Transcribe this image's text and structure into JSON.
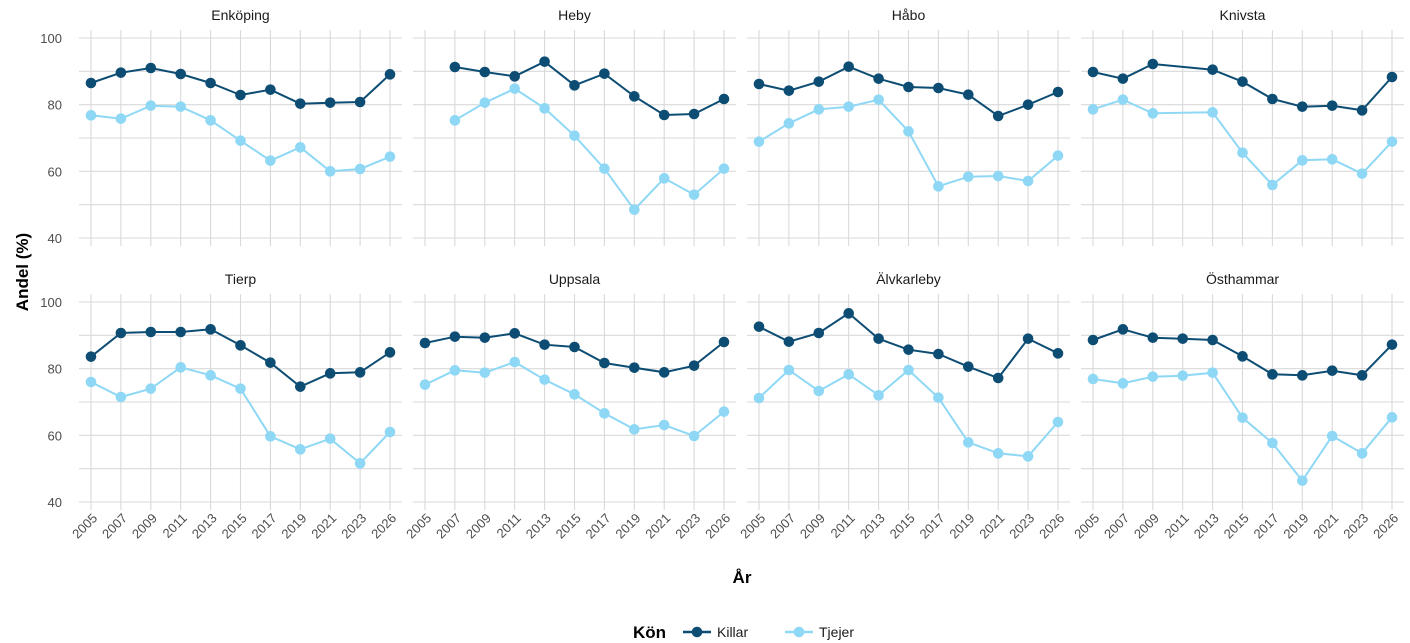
{
  "chart_data": {
    "type": "line",
    "facet_layout": "4 columns x 2 rows",
    "xlabel": "År",
    "ylabel": "Andel (%)",
    "ylim": [
      40,
      100
    ],
    "yticks": [
      40,
      60,
      80,
      100
    ],
    "x": [
      "2005",
      "2007",
      "2009",
      "2011",
      "2013",
      "2015",
      "2017",
      "2019",
      "2021",
      "2023",
      "2026"
    ],
    "grid": true,
    "legend": {
      "title": "Kön",
      "position": "bottom",
      "entries": [
        "Killar",
        "Tjejer"
      ]
    },
    "series_colors": {
      "Killar": "#0d4d73",
      "Tjejer": "#8fd8f5"
    },
    "panels": [
      {
        "title": "Enköping",
        "series": [
          {
            "name": "Killar",
            "values": [
              86.5,
              89.6,
              91,
              89.2,
              86.5,
              82.9,
              84.5,
              80.3,
              80.6,
              80.8,
              89.1
            ]
          },
          {
            "name": "Tjejer",
            "values": [
              76.8,
              75.8,
              79.7,
              79.4,
              75.3,
              69.2,
              63.2,
              67.2,
              60.0,
              60.7,
              64.4
            ]
          }
        ]
      },
      {
        "title": "Heby",
        "series": [
          {
            "name": "Killar",
            "values": [
              null,
              91.3,
              89.8,
              88.5,
              92.9,
              85.8,
              89.3,
              82.5,
              76.9,
              77.2,
              81.7
            ]
          },
          {
            "name": "Tjejer",
            "values": [
              null,
              75.3,
              80.6,
              84.8,
              78.9,
              70.7,
              60.8,
              48.5,
              57.9,
              53.0,
              60.8
            ]
          }
        ]
      },
      {
        "title": "Håbo",
        "series": [
          {
            "name": "Killar",
            "values": [
              86.2,
              84.2,
              86.9,
              91.4,
              87.8,
              85.3,
              85.0,
              83.0,
              76.6,
              80.0,
              83.8
            ]
          },
          {
            "name": "Tjejer",
            "values": [
              68.9,
              74.4,
              78.6,
              79.4,
              81.5,
              72.0,
              55.5,
              58.4,
              58.6,
              57.1,
              64.7
            ]
          }
        ]
      },
      {
        "title": "Knivsta",
        "series": [
          {
            "name": "Killar",
            "values": [
              89.8,
              87.8,
              92.2,
              null,
              90.5,
              86.9,
              81.7,
              79.4,
              79.7,
              78.3,
              88.3
            ]
          },
          {
            "name": "Tjejer",
            "values": [
              78.6,
              81.5,
              77.4,
              null,
              77.7,
              65.6,
              55.9,
              63.3,
              63.6,
              59.3,
              68.9
            ]
          }
        ]
      },
      {
        "title": "Tierp",
        "series": [
          {
            "name": "Killar",
            "values": [
              83.6,
              90.7,
              91.0,
              91.0,
              91.8,
              87.0,
              81.8,
              74.6,
              78.6,
              78.9,
              84.9
            ]
          },
          {
            "name": "Tjejer",
            "values": [
              76.0,
              71.5,
              74.0,
              80.4,
              78.0,
              74.0,
              59.7,
              55.8,
              59.0,
              51.6,
              61.0
            ]
          }
        ]
      },
      {
        "title": "Uppsala",
        "series": [
          {
            "name": "Killar",
            "values": [
              87.7,
              89.6,
              89.3,
              90.6,
              87.2,
              86.5,
              81.7,
              80.3,
              78.9,
              80.9,
              88.0
            ]
          },
          {
            "name": "Tjejer",
            "values": [
              75.2,
              79.5,
              78.8,
              82.0,
              76.7,
              72.3,
              66.6,
              61.8,
              63.1,
              59.8,
              67.1
            ]
          }
        ]
      },
      {
        "title": "Älvkarleby",
        "series": [
          {
            "name": "Killar",
            "values": [
              92.6,
              88.1,
              90.7,
              96.6,
              89.0,
              85.7,
              84.4,
              80.6,
              77.2,
              89.0,
              84.6
            ]
          },
          {
            "name": "Tjejer",
            "values": [
              71.2,
              79.6,
              73.3,
              78.3,
              72.0,
              79.6,
              71.3,
              57.9,
              54.6,
              53.7,
              64.0
            ]
          }
        ]
      },
      {
        "title": "Östhammar",
        "series": [
          {
            "name": "Killar",
            "values": [
              88.6,
              91.8,
              89.3,
              89.0,
              88.6,
              83.7,
              78.3,
              78.0,
              79.4,
              78.0,
              87.2
            ]
          },
          {
            "name": "Tjejer",
            "values": [
              76.9,
              75.6,
              77.6,
              77.9,
              78.8,
              65.3,
              57.7,
              46.4,
              59.8,
              54.6,
              65.4
            ]
          }
        ]
      }
    ]
  }
}
